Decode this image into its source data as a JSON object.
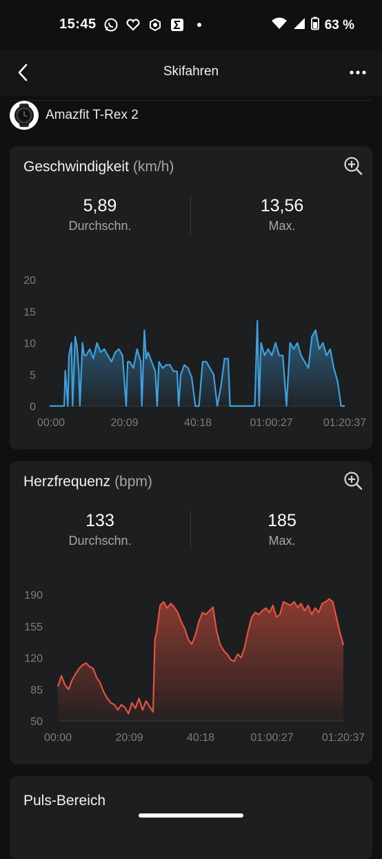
{
  "status_bar": {
    "time": "15:45",
    "battery": "63 %",
    "icons": [
      "whatsapp-icon",
      "heart-app-icon",
      "zepp-icon",
      "sigma-app-icon",
      "dot-icon",
      "wifi-icon",
      "signal-icon",
      "battery-icon"
    ]
  },
  "app_bar": {
    "title": "Skifahren"
  },
  "device": {
    "name": "Amazfit T-Rex 2"
  },
  "speed_card": {
    "title": "Geschwindigkeit",
    "unit": "(km/h)",
    "avg_value": "5,89",
    "avg_label": "Durchschn.",
    "max_value": "13,56",
    "max_label": "Max."
  },
  "heart_card": {
    "title": "Herzfrequenz",
    "unit": "(bpm)",
    "avg_value": "133",
    "avg_label": "Durchschn.",
    "max_value": "185",
    "max_label": "Max."
  },
  "zone_card": {
    "title": "Puls-Bereich"
  },
  "colors": {
    "speed_line": "#3fa0dc",
    "heart_line": "#e3533f",
    "card_bg": "#1d1e20",
    "page_bg": "#0f1011"
  },
  "chart_data": [
    {
      "type": "area",
      "title": "Geschwindigkeit (km/h)",
      "x_tick_labels": [
        "00:00",
        "20:09",
        "40:18",
        "01:00:27",
        "01:20:37"
      ],
      "y_ticks": [
        0,
        5,
        10,
        15,
        20
      ],
      "ylim": [
        0,
        20
      ],
      "x_minutes": [
        0,
        4,
        4.3,
        5,
        5.3,
        6,
        6.3,
        7,
        7.5,
        8,
        8.3,
        9,
        9.5,
        10,
        11,
        12,
        13,
        14,
        15,
        16,
        17,
        18,
        19,
        20,
        21,
        21.4,
        22,
        23,
        24,
        25,
        25.3,
        26,
        26.5,
        27,
        28,
        29,
        29.5,
        30,
        31,
        32,
        33,
        34,
        35,
        35.4,
        36,
        37,
        38,
        39,
        40,
        41,
        42,
        42.5,
        43,
        44,
        45,
        46,
        47,
        48,
        49,
        49.5,
        50,
        51,
        52,
        53,
        53.5,
        54,
        55,
        56,
        56.3,
        57,
        57.5,
        58,
        59,
        60,
        61,
        62,
        63,
        64,
        65,
        66,
        67,
        68,
        69,
        70,
        71,
        72,
        73,
        74,
        75,
        76,
        77,
        78,
        79,
        80,
        81
      ],
      "values": [
        0,
        0,
        5.6,
        0,
        8,
        10,
        0,
        11,
        9.5,
        5.5,
        0,
        10,
        8,
        8,
        9,
        7.5,
        10,
        8.5,
        9,
        8,
        7,
        8.5,
        9,
        8,
        0,
        7,
        7,
        6,
        9,
        7,
        0,
        12,
        7.5,
        8.5,
        7,
        5.5,
        0,
        7,
        6,
        6.5,
        6.5,
        5.5,
        5.5,
        0,
        5,
        6.5,
        6,
        4.5,
        0,
        0,
        7,
        7,
        7,
        6,
        5,
        0,
        3,
        7.5,
        7.5,
        0,
        0,
        0,
        0,
        0,
        0,
        0,
        0,
        0,
        0,
        13.5,
        0,
        10,
        8,
        9,
        8,
        10,
        8,
        8,
        0,
        10,
        9,
        10,
        8,
        7,
        6,
        11,
        12,
        9,
        10,
        8,
        9,
        6,
        4,
        0,
        0
      ],
      "note_axis": "values approximate, read from chart"
    },
    {
      "type": "area",
      "title": "Herzfrequenz (bpm)",
      "x_tick_labels": [
        "00:00",
        "20:09",
        "40:18",
        "01:00:27",
        "01:20:37"
      ],
      "y_ticks": [
        50,
        85,
        120,
        155,
        190
      ],
      "ylim": [
        50,
        190
      ],
      "x_minutes": [
        0,
        1,
        2,
        3,
        4,
        5,
        6,
        7,
        8,
        9,
        10,
        11,
        12,
        13,
        14,
        15,
        16,
        17,
        18,
        19,
        20,
        21,
        22,
        23,
        24,
        25,
        26,
        27,
        27.5,
        28,
        29,
        30,
        31,
        32,
        33,
        34,
        35,
        36,
        37,
        38,
        39,
        40,
        41,
        42,
        43,
        44,
        45,
        46,
        47,
        48,
        49,
        50,
        51,
        52,
        53,
        54,
        55,
        56,
        57,
        58,
        59,
        60,
        61,
        62,
        63,
        64,
        65,
        66,
        67,
        68,
        69,
        70,
        71,
        72,
        73,
        74,
        75,
        76,
        77,
        78,
        79,
        80,
        81
      ],
      "values": [
        88,
        100,
        90,
        85,
        95,
        102,
        108,
        112,
        114,
        110,
        108,
        98,
        92,
        82,
        75,
        70,
        68,
        62,
        68,
        65,
        58,
        70,
        64,
        75,
        62,
        72,
        66,
        60,
        140,
        148,
        178,
        182,
        175,
        180,
        176,
        170,
        160,
        152,
        140,
        135,
        145,
        160,
        170,
        168,
        172,
        176,
        150,
        135,
        128,
        124,
        118,
        116,
        124,
        120,
        132,
        150,
        165,
        170,
        168,
        172,
        175,
        170,
        178,
        165,
        168,
        182,
        180,
        178,
        182,
        176,
        180,
        172,
        178,
        168,
        175,
        170,
        180,
        182,
        185,
        182,
        165,
        148,
        134
      ]
    }
  ]
}
